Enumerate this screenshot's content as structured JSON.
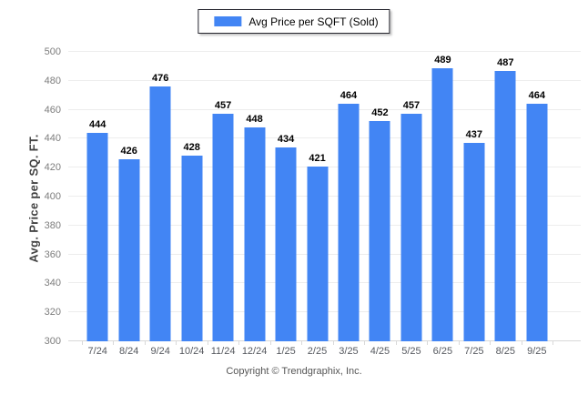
{
  "legend": {
    "label": "Avg Price per SQFT (Sold)",
    "swatch_color": "#4285f4",
    "border_color": "#26262e"
  },
  "chart_data": {
    "type": "bar",
    "title": "",
    "categories": [
      "7/24",
      "8/24",
      "9/24",
      "10/24",
      "11/24",
      "12/24",
      "1/25",
      "2/25",
      "3/25",
      "4/25",
      "5/25",
      "6/25",
      "7/25",
      "8/25",
      "9/25"
    ],
    "values": [
      444,
      426,
      476,
      428,
      457,
      448,
      434,
      421,
      464,
      452,
      457,
      489,
      437,
      487,
      464
    ],
    "series_name": "Avg Price per SQFT (Sold)",
    "xlabel": "",
    "ylabel": "Avg. Price per SQ. FT.",
    "ylim": [
      300,
      500
    ],
    "yticks": [
      300,
      320,
      340,
      360,
      380,
      400,
      420,
      440,
      460,
      480,
      500
    ],
    "grid": true,
    "value_labels": true,
    "legend_position": "top-center"
  },
  "colors": {
    "bar": "#4285f4",
    "gridline": "#ededed",
    "baseline": "#d9d9d9",
    "x_tick": "#d9d9d9",
    "value_label": "#000000",
    "y_tick_label": "#7d7d7d",
    "x_tick_label": "#55585e",
    "axis_title": "#434343",
    "footer_text": "#555555"
  },
  "footer": {
    "copyright": "Copyright © Trendgraphix, Inc."
  }
}
